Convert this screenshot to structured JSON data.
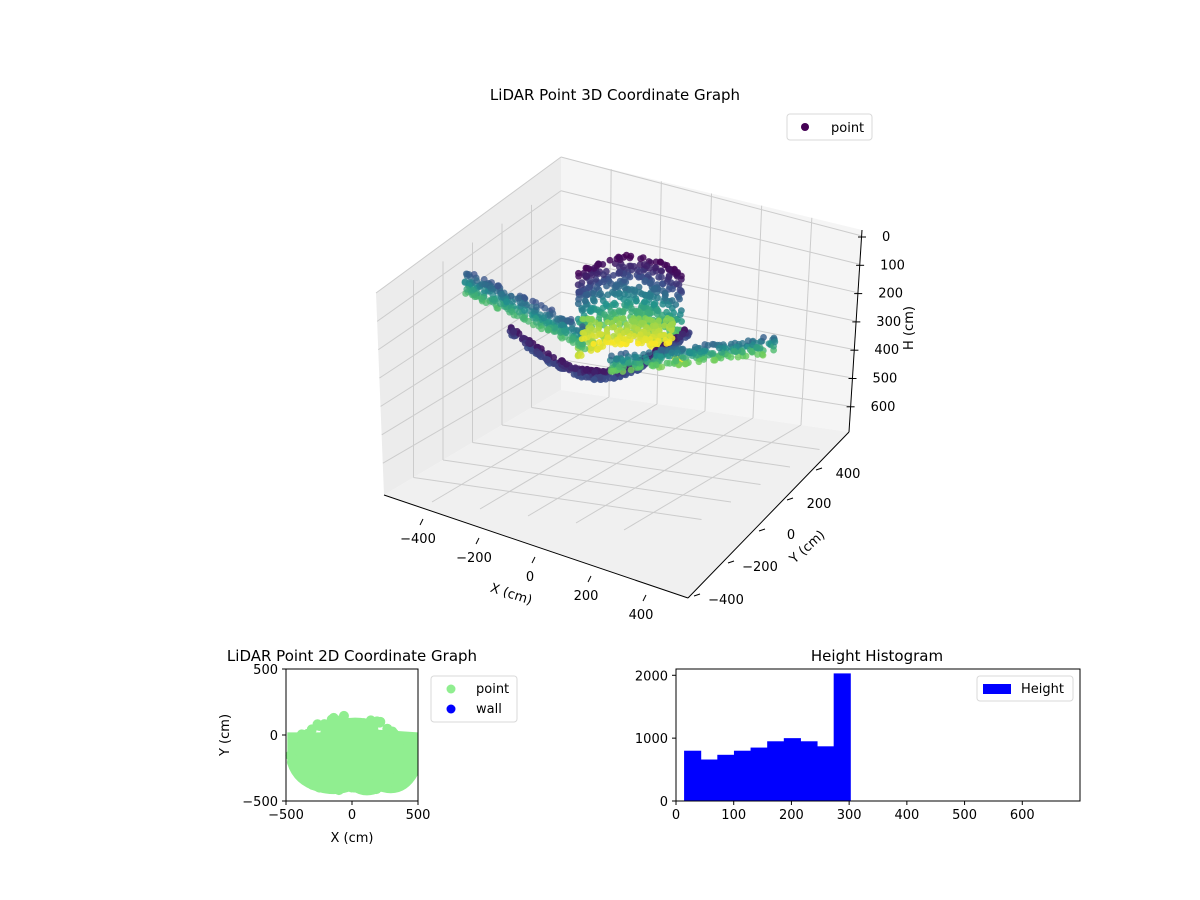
{
  "colors": {
    "viridis_dark": "#440154",
    "viridis_teal": "#21918c",
    "viridis_yellow": "#fde725",
    "point_2d": "#90ee90",
    "wall_2d": "#0000ff",
    "histogram": "#0000ff"
  },
  "chart_data": [
    {
      "type": "scatter",
      "projection": "3d",
      "title": "LiDAR Point 3D Coordinate Graph",
      "xlabel": "X (cm)",
      "ylabel": "Y (cm)",
      "zlabel": "H (cm)",
      "xticks": [
        "−400",
        "−200",
        "0",
        "200",
        "400"
      ],
      "yticks": [
        "−400",
        "−200",
        "0",
        "200",
        "400"
      ],
      "zticks": [
        "0",
        "100",
        "200",
        "300",
        "400",
        "500",
        "600"
      ],
      "zlim_inverted": true,
      "colormap": "viridis",
      "grid": true,
      "legend": {
        "placement": "top-right",
        "entries": [
          "point"
        ]
      },
      "series": [
        {
          "name": "point"
        }
      ]
    },
    {
      "type": "scatter",
      "title": "LiDAR Point 2D Coordinate Graph",
      "xlabel": "X (cm)",
      "ylabel": "Y (cm)",
      "xlim": [
        -500,
        500
      ],
      "ylim": [
        -500,
        500
      ],
      "xticks": [
        "−500",
        "0",
        "500"
      ],
      "yticks": [
        "500",
        "0",
        "−500"
      ],
      "legend": {
        "placement": "outside-right",
        "entries": [
          "point",
          "wall"
        ]
      },
      "series": [
        {
          "name": "point"
        },
        {
          "name": "wall"
        }
      ]
    },
    {
      "type": "bar",
      "subtype": "histogram",
      "title": "Height Histogram",
      "xlim": [
        0,
        700
      ],
      "ylim": [
        0,
        2100
      ],
      "xticks": [
        "0",
        "100",
        "200",
        "300",
        "400",
        "500",
        "600"
      ],
      "yticks": [
        "0",
        "1000",
        "2000"
      ],
      "legend": {
        "placement": "top-right",
        "entries": [
          "Height"
        ]
      },
      "bin_width": 28.8,
      "bin_start": 14,
      "values": [
        800,
        660,
        735,
        800,
        850,
        950,
        1000,
        950,
        870,
        2030
      ],
      "series": [
        {
          "name": "Height"
        }
      ]
    }
  ]
}
